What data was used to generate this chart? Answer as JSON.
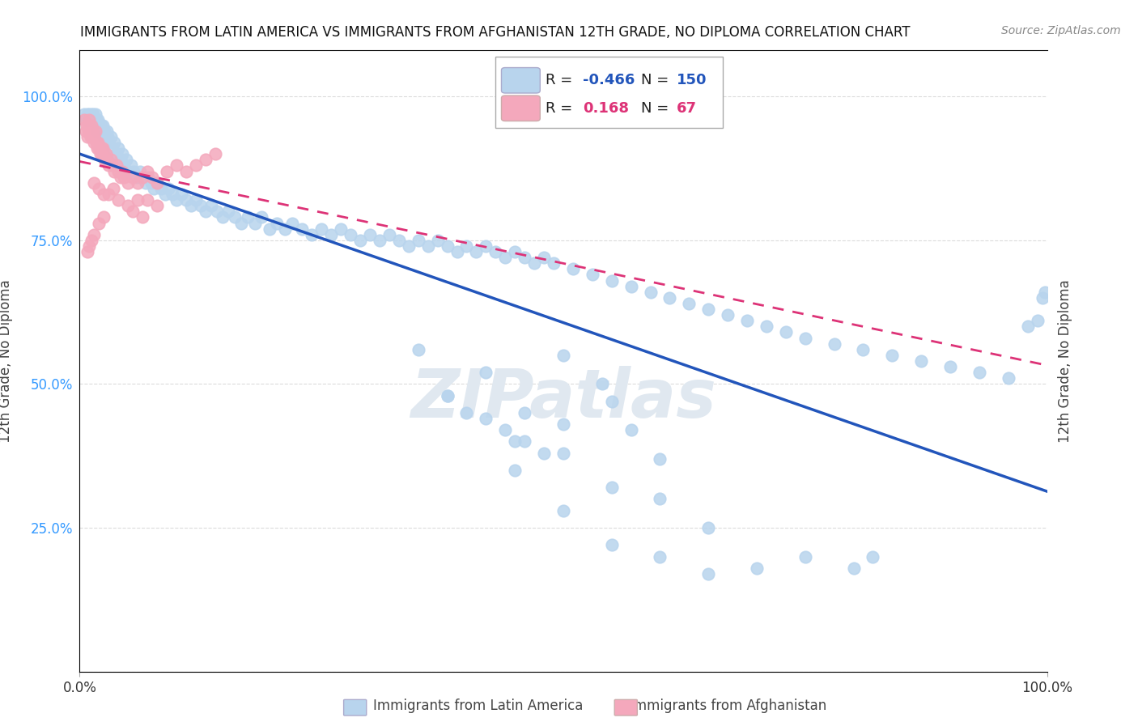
{
  "title": "IMMIGRANTS FROM LATIN AMERICA VS IMMIGRANTS FROM AFGHANISTAN 12TH GRADE, NO DIPLOMA CORRELATION CHART",
  "source": "Source: ZipAtlas.com",
  "ylabel": "12th Grade, No Diploma",
  "blue_R": "-0.466",
  "blue_N": "150",
  "pink_R": "0.168",
  "pink_N": "67",
  "blue_scatter_color": "#b8d4ed",
  "blue_line_color": "#2255bb",
  "pink_scatter_color": "#f4a8bc",
  "pink_line_color": "#dd3377",
  "bg_color": "#ffffff",
  "grid_color": "#cccccc",
  "watermark_color": "#e0e8f0",
  "ytick_vals": [
    0.0,
    0.25,
    0.5,
    0.75,
    1.0
  ],
  "ytick_labels": [
    "",
    "25.0%",
    "50.0%",
    "75.0%",
    "100.0%"
  ],
  "xlim": [
    0.0,
    1.0
  ],
  "ylim": [
    0.0,
    1.08
  ],
  "blue_x": [
    0.005,
    0.007,
    0.008,
    0.009,
    0.01,
    0.011,
    0.012,
    0.013,
    0.014,
    0.015,
    0.016,
    0.017,
    0.018,
    0.019,
    0.02,
    0.021,
    0.022,
    0.023,
    0.024,
    0.025,
    0.026,
    0.027,
    0.028,
    0.029,
    0.03,
    0.032,
    0.034,
    0.036,
    0.038,
    0.04,
    0.042,
    0.044,
    0.046,
    0.048,
    0.05,
    0.053,
    0.056,
    0.059,
    0.062,
    0.065,
    0.068,
    0.071,
    0.074,
    0.077,
    0.08,
    0.084,
    0.088,
    0.092,
    0.096,
    0.1,
    0.105,
    0.11,
    0.115,
    0.12,
    0.125,
    0.13,
    0.136,
    0.142,
    0.148,
    0.154,
    0.16,
    0.167,
    0.174,
    0.181,
    0.188,
    0.196,
    0.204,
    0.212,
    0.22,
    0.23,
    0.24,
    0.25,
    0.26,
    0.27,
    0.28,
    0.29,
    0.3,
    0.31,
    0.32,
    0.33,
    0.34,
    0.35,
    0.36,
    0.37,
    0.38,
    0.39,
    0.4,
    0.41,
    0.42,
    0.43,
    0.44,
    0.45,
    0.46,
    0.47,
    0.48,
    0.49,
    0.51,
    0.53,
    0.55,
    0.57,
    0.59,
    0.61,
    0.63,
    0.65,
    0.67,
    0.69,
    0.71,
    0.73,
    0.75,
    0.78,
    0.81,
    0.84,
    0.87,
    0.9,
    0.93,
    0.96,
    0.98,
    0.99,
    0.995,
    0.998
  ],
  "blue_y": [
    0.97,
    0.96,
    0.97,
    0.96,
    0.97,
    0.96,
    0.97,
    0.96,
    0.97,
    0.96,
    0.97,
    0.96,
    0.94,
    0.96,
    0.95,
    0.94,
    0.95,
    0.94,
    0.95,
    0.93,
    0.94,
    0.93,
    0.94,
    0.93,
    0.92,
    0.93,
    0.91,
    0.92,
    0.9,
    0.91,
    0.89,
    0.9,
    0.88,
    0.89,
    0.87,
    0.88,
    0.87,
    0.86,
    0.87,
    0.86,
    0.85,
    0.86,
    0.85,
    0.84,
    0.85,
    0.84,
    0.83,
    0.84,
    0.83,
    0.82,
    0.83,
    0.82,
    0.81,
    0.82,
    0.81,
    0.8,
    0.81,
    0.8,
    0.79,
    0.8,
    0.79,
    0.78,
    0.79,
    0.78,
    0.79,
    0.77,
    0.78,
    0.77,
    0.78,
    0.77,
    0.76,
    0.77,
    0.76,
    0.77,
    0.76,
    0.75,
    0.76,
    0.75,
    0.76,
    0.75,
    0.74,
    0.75,
    0.74,
    0.75,
    0.74,
    0.73,
    0.74,
    0.73,
    0.74,
    0.73,
    0.72,
    0.73,
    0.72,
    0.71,
    0.72,
    0.71,
    0.7,
    0.69,
    0.68,
    0.67,
    0.66,
    0.65,
    0.64,
    0.63,
    0.62,
    0.61,
    0.6,
    0.59,
    0.58,
    0.57,
    0.56,
    0.55,
    0.54,
    0.53,
    0.52,
    0.51,
    0.6,
    0.61,
    0.65,
    0.66
  ],
  "blue_outlier_x": [
    0.35,
    0.38,
    0.42,
    0.46,
    0.5,
    0.54,
    0.57,
    0.5,
    0.45,
    0.6,
    0.55,
    0.5,
    0.65,
    0.55,
    0.6,
    0.7,
    0.65,
    0.75,
    0.8,
    0.82,
    0.55,
    0.4,
    0.45,
    0.5,
    0.48,
    0.44,
    0.38,
    0.42,
    0.46,
    0.6
  ],
  "blue_outlier_y": [
    0.56,
    0.48,
    0.52,
    0.45,
    0.55,
    0.5,
    0.42,
    0.38,
    0.35,
    0.3,
    0.32,
    0.28,
    0.25,
    0.22,
    0.2,
    0.18,
    0.17,
    0.2,
    0.18,
    0.2,
    0.47,
    0.45,
    0.4,
    0.43,
    0.38,
    0.42,
    0.48,
    0.44,
    0.4,
    0.37
  ],
  "pink_x": [
    0.005,
    0.006,
    0.007,
    0.008,
    0.009,
    0.01,
    0.01,
    0.011,
    0.012,
    0.012,
    0.013,
    0.014,
    0.015,
    0.015,
    0.016,
    0.017,
    0.018,
    0.019,
    0.02,
    0.021,
    0.022,
    0.023,
    0.024,
    0.025,
    0.026,
    0.027,
    0.028,
    0.03,
    0.032,
    0.034,
    0.036,
    0.038,
    0.04,
    0.042,
    0.044,
    0.046,
    0.05,
    0.055,
    0.06,
    0.065,
    0.07,
    0.075,
    0.08,
    0.09,
    0.1,
    0.11,
    0.12,
    0.13,
    0.14,
    0.06,
    0.025,
    0.02,
    0.015,
    0.01,
    0.012,
    0.008,
    0.03,
    0.035,
    0.04,
    0.05,
    0.055,
    0.065,
    0.07,
    0.08,
    0.015,
    0.02,
    0.025
  ],
  "pink_y": [
    0.96,
    0.94,
    0.95,
    0.93,
    0.94,
    0.95,
    0.96,
    0.93,
    0.94,
    0.95,
    0.93,
    0.94,
    0.92,
    0.93,
    0.94,
    0.92,
    0.91,
    0.92,
    0.91,
    0.9,
    0.91,
    0.9,
    0.91,
    0.9,
    0.89,
    0.9,
    0.89,
    0.88,
    0.89,
    0.88,
    0.87,
    0.88,
    0.87,
    0.86,
    0.87,
    0.86,
    0.85,
    0.86,
    0.85,
    0.86,
    0.87,
    0.86,
    0.85,
    0.87,
    0.88,
    0.87,
    0.88,
    0.89,
    0.9,
    0.82,
    0.79,
    0.78,
    0.76,
    0.74,
    0.75,
    0.73,
    0.83,
    0.84,
    0.82,
    0.81,
    0.8,
    0.79,
    0.82,
    0.81,
    0.85,
    0.84,
    0.83
  ]
}
